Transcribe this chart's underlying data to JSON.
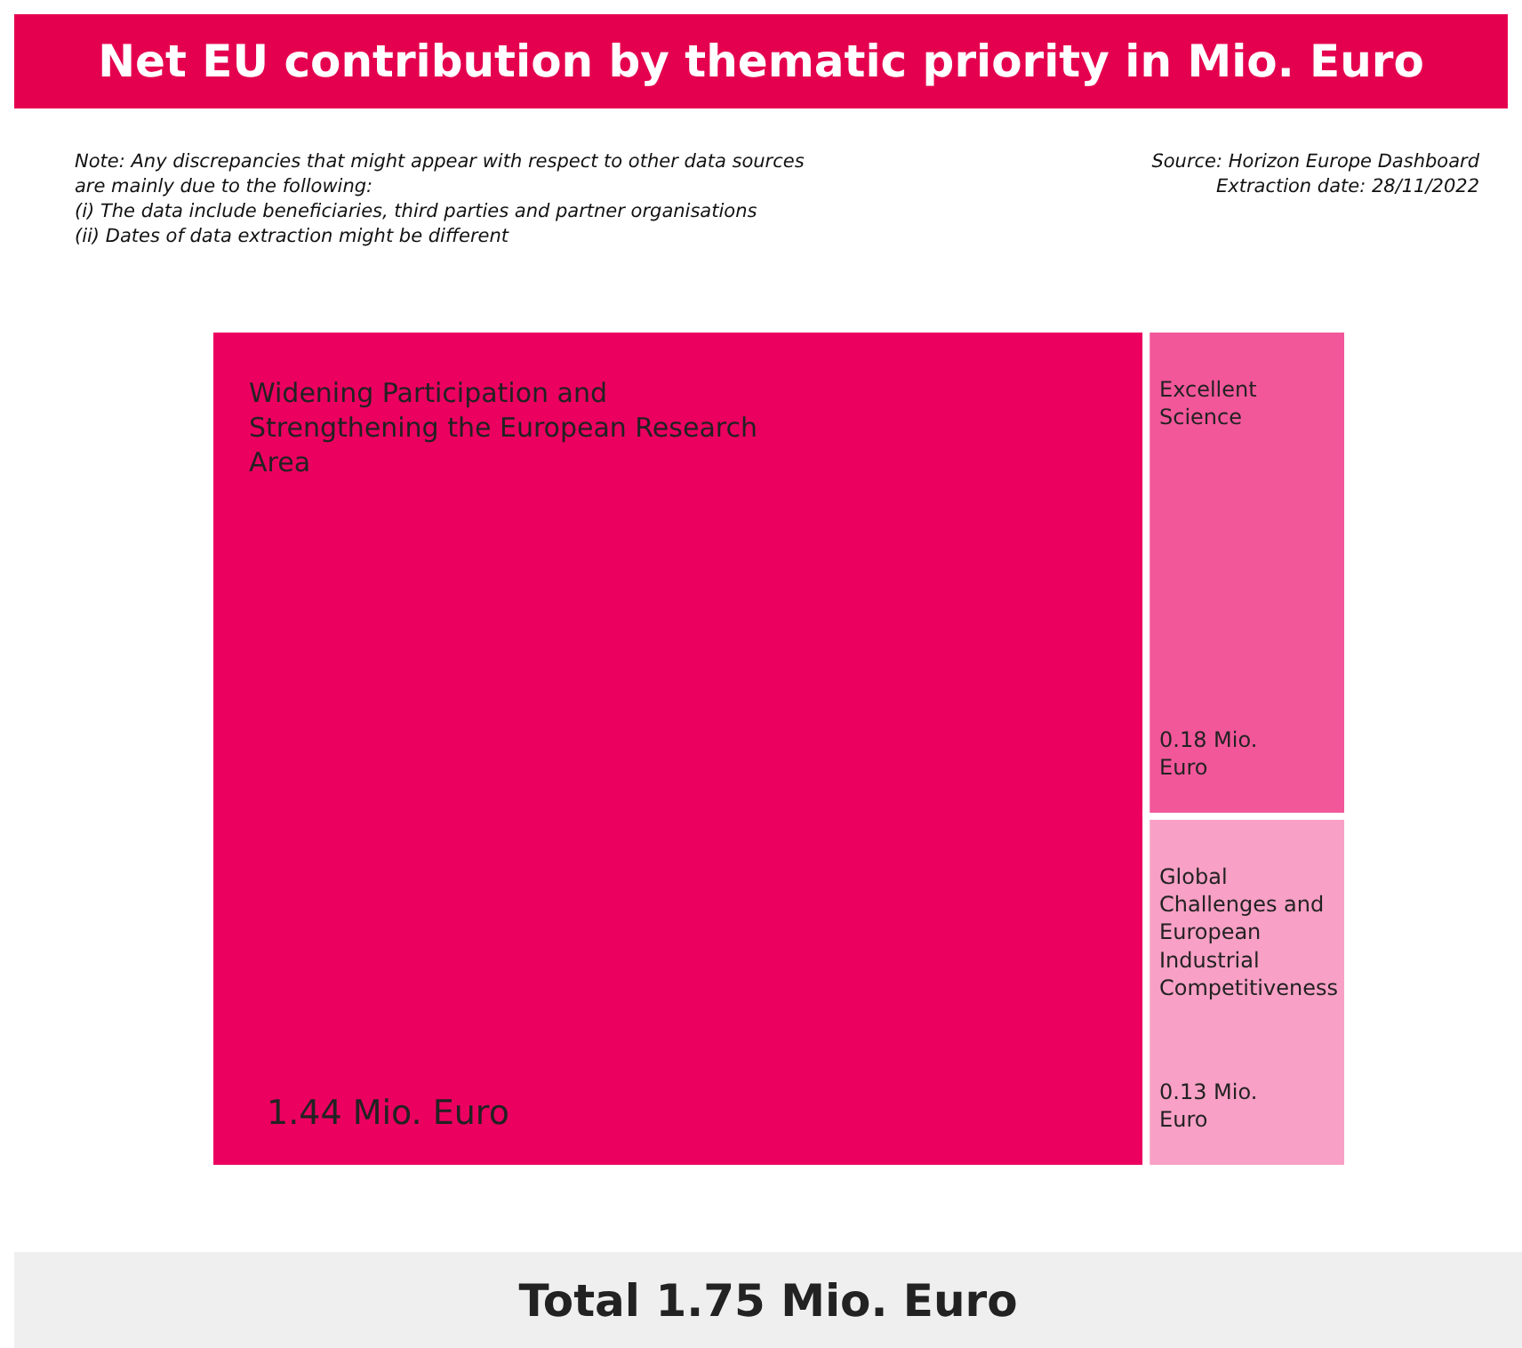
{
  "chart_data": {
    "type": "other",
    "title": "Net EU contribution by thematic priority in Mio. Euro",
    "categories": [
      "Widening Participation and Strengthening the European Research Area",
      "Excellent Science",
      "Global Challenges and European Industrial Competitiveness"
    ],
    "values": [
      1.44,
      0.18,
      0.13
    ],
    "colors": [
      "#eb0060",
      "#f2579a",
      "#f8a0c5"
    ],
    "value_labels": [
      "1.44 Mio. Euro",
      "0.18 Mio. Euro",
      "0.13 Mio. Euro"
    ],
    "annotations": [
      "Note: Any discrepancies that might appear with respect to other data sources are mainly due to the following:",
      "(i) The data include beneficiaries, third parties and partner organisations",
      "(ii) Dates of data extraction might be different",
      "Source: Horizon Europe Dashboard",
      "Extraction date: 28/11/2022",
      "Total 1.75 Mio. Euro"
    ]
  }
}
